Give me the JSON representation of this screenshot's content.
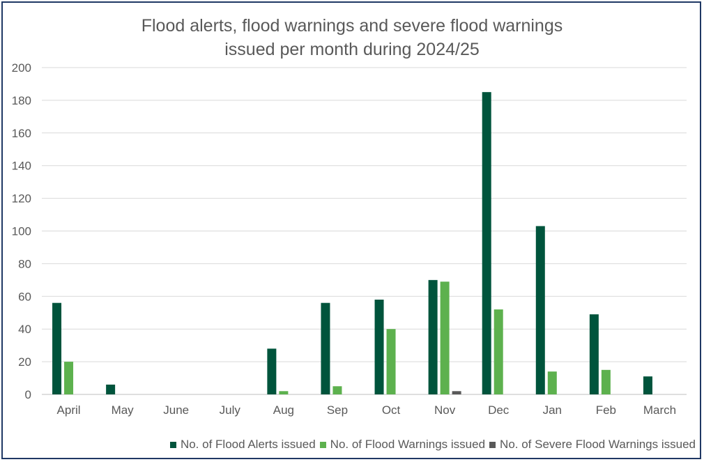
{
  "chart_data": {
    "type": "bar",
    "title_line1": "Flood alerts, flood warnings and severe flood warnings",
    "title_line2": "issued per month during 2024/25",
    "xlabel": "",
    "ylabel": "",
    "ylim": [
      0,
      200
    ],
    "yticks": [
      0,
      20,
      40,
      60,
      80,
      100,
      120,
      140,
      160,
      180,
      200
    ],
    "grid": true,
    "legend_position": "bottom-right",
    "categories": [
      "April",
      "May",
      "June",
      "July",
      "Aug",
      "Sep",
      "Oct",
      "Nov",
      "Dec",
      "Jan",
      "Feb",
      "March"
    ],
    "series": [
      {
        "name": "No. of Flood Alerts issued",
        "color": "#00543c",
        "values": [
          56,
          6,
          0,
          0,
          28,
          56,
          58,
          70,
          185,
          103,
          49,
          11
        ]
      },
      {
        "name": "No. of Flood Warnings issued",
        "color": "#5db14e",
        "values": [
          20,
          0,
          0,
          0,
          2,
          5,
          40,
          69,
          52,
          14,
          15,
          0
        ]
      },
      {
        "name": "No. of Severe Flood Warnings issued",
        "color": "#595959",
        "values": [
          0,
          0,
          0,
          0,
          0,
          0,
          0,
          2,
          0,
          0,
          0,
          0
        ]
      }
    ]
  }
}
